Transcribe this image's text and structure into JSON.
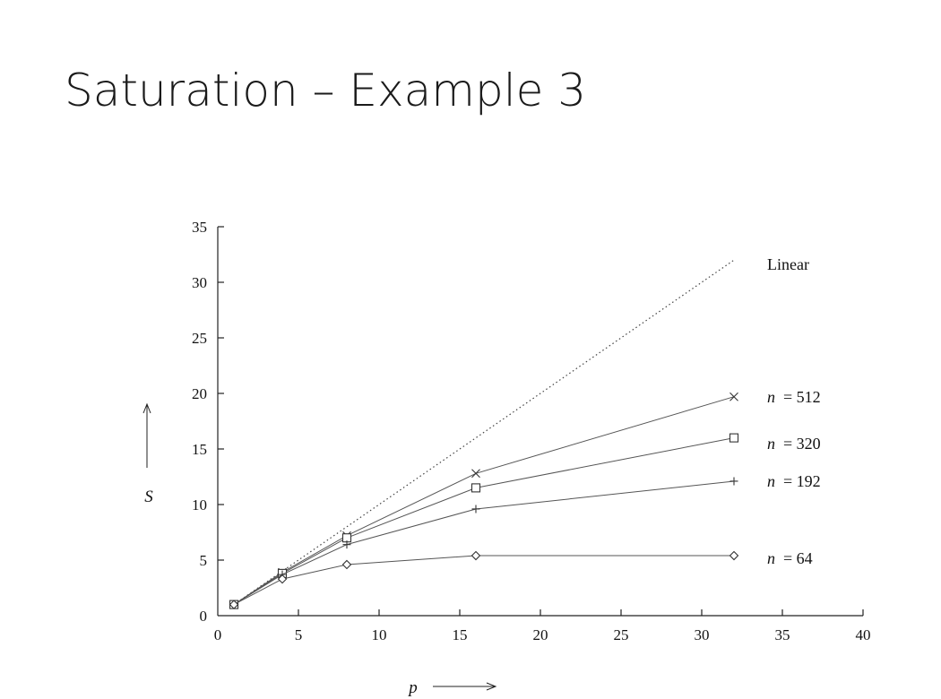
{
  "slide": {
    "title": "Saturation – Example 3"
  },
  "chart_data": {
    "type": "line",
    "xlabel": "p",
    "ylabel": "S",
    "xlim": [
      0,
      40
    ],
    "ylim": [
      0,
      35
    ],
    "xticks": [
      0,
      5,
      10,
      15,
      20,
      25,
      30,
      35,
      40
    ],
    "yticks": [
      0,
      5,
      10,
      15,
      20,
      25,
      30,
      35
    ],
    "grid": false,
    "series": [
      {
        "name": "Linear",
        "style": "dotted",
        "marker": "none",
        "x": [
          1,
          32
        ],
        "y": [
          1,
          32
        ],
        "label_parts": [
          "Linear"
        ]
      },
      {
        "name": "n = 512",
        "style": "solid",
        "marker": "x",
        "x": [
          1,
          4,
          8,
          16,
          32
        ],
        "y": [
          1,
          3.9,
          7.2,
          12.8,
          19.7
        ],
        "label_parts": [
          "n",
          "= 512"
        ]
      },
      {
        "name": "n = 320",
        "style": "solid",
        "marker": "square",
        "x": [
          1,
          4,
          8,
          16,
          32
        ],
        "y": [
          1,
          3.8,
          7.0,
          11.5,
          16.0
        ],
        "label_parts": [
          "n",
          "= 320"
        ]
      },
      {
        "name": "n = 192",
        "style": "solid",
        "marker": "plus",
        "x": [
          1,
          4,
          8,
          16,
          32
        ],
        "y": [
          1,
          3.7,
          6.4,
          9.6,
          12.1
        ],
        "label_parts": [
          "n",
          "= 192"
        ]
      },
      {
        "name": "n = 64",
        "style": "solid",
        "marker": "diamond",
        "x": [
          1,
          4,
          8,
          16,
          32
        ],
        "y": [
          1,
          3.3,
          4.6,
          5.4,
          5.4
        ],
        "label_parts": [
          "n",
          "= 64"
        ]
      }
    ]
  }
}
